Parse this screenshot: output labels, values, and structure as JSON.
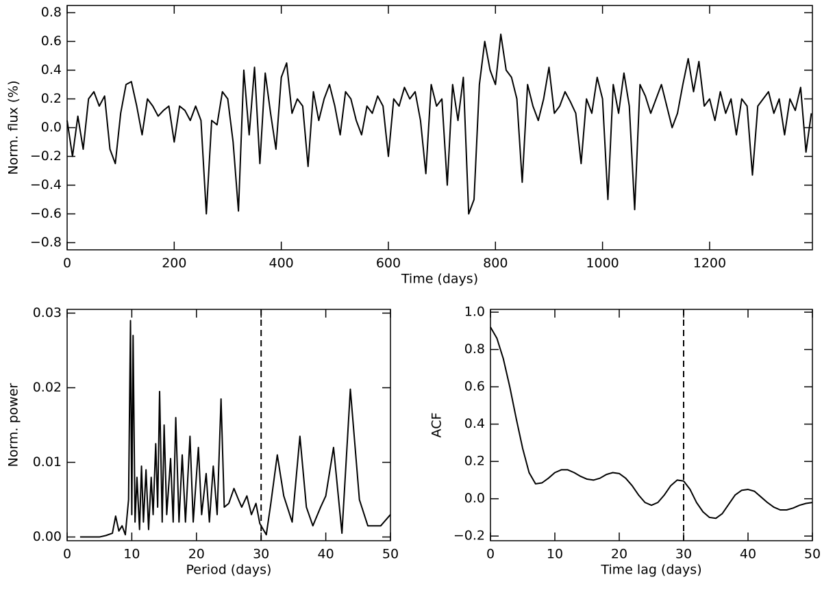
{
  "chart_data": [
    {
      "type": "line",
      "xlabel": "Time (days)",
      "ylabel": "Norm. flux (%)",
      "xlim": [
        0,
        1392
      ],
      "ylim": [
        -0.85,
        0.85
      ],
      "xticks": [
        0,
        200,
        400,
        600,
        800,
        1000,
        1200
      ],
      "yticks": [
        {
          "value": -0.8,
          "label": "−0.8"
        },
        {
          "value": -0.6,
          "label": "−0.6"
        },
        {
          "value": -0.4,
          "label": "−0.4"
        },
        {
          "value": -0.2,
          "label": "−0.2"
        },
        {
          "value": 0,
          "label": "0.0"
        },
        {
          "value": 0.2,
          "label": "0.2"
        },
        {
          "value": 0.4,
          "label": "0.4"
        },
        {
          "value": 0.6,
          "label": "0.6"
        },
        {
          "value": 0.8,
          "label": "0.8"
        }
      ],
      "color": "#000000",
      "x": [
        0,
        10,
        20,
        30,
        40,
        50,
        60,
        70,
        80,
        90,
        100,
        110,
        120,
        130,
        140,
        150,
        160,
        170,
        180,
        190,
        200,
        210,
        220,
        230,
        240,
        250,
        260,
        270,
        280,
        290,
        300,
        310,
        320,
        330,
        340,
        350,
        360,
        370,
        380,
        390,
        400,
        410,
        420,
        430,
        440,
        450,
        460,
        470,
        480,
        490,
        500,
        510,
        520,
        530,
        540,
        550,
        560,
        570,
        580,
        590,
        600,
        610,
        620,
        630,
        640,
        650,
        660,
        670,
        680,
        690,
        700,
        710,
        720,
        730,
        740,
        750,
        760,
        770,
        780,
        790,
        800,
        810,
        820,
        830,
        840,
        850,
        860,
        870,
        880,
        890,
        900,
        910,
        920,
        930,
        940,
        950,
        960,
        970,
        980,
        990,
        1000,
        1010,
        1020,
        1030,
        1040,
        1050,
        1060,
        1070,
        1080,
        1090,
        1100,
        1110,
        1120,
        1130,
        1140,
        1150,
        1160,
        1170,
        1180,
        1190,
        1200,
        1210,
        1220,
        1230,
        1240,
        1250,
        1260,
        1270,
        1280,
        1290,
        1300,
        1310,
        1320,
        1330,
        1340,
        1350,
        1360,
        1370,
        1380,
        1390
      ],
      "values": [
        0.05,
        -0.2,
        0.08,
        -0.15,
        0.2,
        0.25,
        0.15,
        0.22,
        -0.15,
        -0.25,
        0.1,
        0.3,
        0.32,
        0.15,
        -0.05,
        0.2,
        0.15,
        0.08,
        0.12,
        0.15,
        -0.1,
        0.15,
        0.12,
        0.05,
        0.15,
        0.05,
        -0.6,
        0.05,
        0.02,
        0.25,
        0.2,
        -0.1,
        -0.58,
        0.4,
        -0.05,
        0.42,
        -0.25,
        0.38,
        0.1,
        -0.15,
        0.35,
        0.45,
        0.1,
        0.2,
        0.15,
        -0.27,
        0.25,
        0.05,
        0.2,
        0.3,
        0.15,
        -0.05,
        0.25,
        0.2,
        0.05,
        -0.05,
        0.15,
        0.1,
        0.22,
        0.15,
        -0.2,
        0.2,
        0.15,
        0.28,
        0.2,
        0.25,
        0.05,
        -0.32,
        0.3,
        0.15,
        0.2,
        -0.4,
        0.3,
        0.05,
        0.35,
        -0.6,
        -0.5,
        0.3,
        0.6,
        0.4,
        0.3,
        0.65,
        0.4,
        0.35,
        0.2,
        -0.38,
        0.3,
        0.15,
        0.05,
        0.2,
        0.42,
        0.1,
        0.15,
        0.25,
        0.18,
        0.1,
        -0.25,
        0.2,
        0.1,
        0.35,
        0.2,
        -0.5,
        0.3,
        0.1,
        0.38,
        0.15,
        -0.57,
        0.3,
        0.22,
        0.1,
        0.2,
        0.3,
        0.15,
        0.0,
        0.1,
        0.3,
        0.48,
        0.25,
        0.46,
        0.15,
        0.2,
        0.05,
        0.25,
        0.1,
        0.2,
        -0.05,
        0.2,
        0.15,
        -0.33,
        0.15,
        0.2,
        0.25,
        0.1,
        0.2,
        -0.05,
        0.2,
        0.12,
        0.28,
        -0.17,
        0.1
      ]
    },
    {
      "type": "line",
      "xlabel": "Period (days)",
      "ylabel": "Norm. power",
      "xlim": [
        0,
        50
      ],
      "ylim": [
        -0.0005,
        0.0305
      ],
      "xticks": [
        0,
        10,
        20,
        30,
        40,
        50
      ],
      "yticks": [
        {
          "value": 0,
          "label": "0.00"
        },
        {
          "value": 0.01,
          "label": "0.01"
        },
        {
          "value": 0.02,
          "label": "0.02"
        },
        {
          "value": 0.03,
          "label": "0.03"
        }
      ],
      "color": "#000000",
      "reference_x": 30,
      "x": [
        2,
        5,
        6,
        7,
        7.5,
        8,
        8.5,
        9,
        9.5,
        9.8,
        10,
        10.2,
        10.5,
        10.8,
        11.2,
        11.5,
        11.8,
        12.2,
        12.6,
        13,
        13.3,
        13.7,
        14,
        14.3,
        14.7,
        15,
        15.4,
        16,
        16.4,
        16.8,
        17.3,
        17.8,
        18.3,
        19,
        19.5,
        20.3,
        20.8,
        21.5,
        22,
        22.6,
        23.2,
        23.8,
        24.3,
        25,
        25.8,
        26.5,
        27,
        27.8,
        28.5,
        29.2,
        29.8,
        30.8,
        31.5,
        32.5,
        33.5,
        34.8,
        36,
        37,
        38,
        39.2,
        40,
        41.2,
        42.5,
        43.8,
        45.2,
        46.5,
        48.5,
        50
      ],
      "values": [
        0,
        0,
        0.0002,
        0.0005,
        0.0028,
        0.0008,
        0.0015,
        0.0003,
        0.005,
        0.029,
        0.003,
        0.027,
        0.002,
        0.008,
        0.001,
        0.0095,
        0.002,
        0.009,
        0.001,
        0.008,
        0.003,
        0.0125,
        0.004,
        0.0195,
        0.002,
        0.015,
        0.003,
        0.0105,
        0.002,
        0.016,
        0.002,
        0.011,
        0.002,
        0.0135,
        0.002,
        0.012,
        0.003,
        0.0085,
        0.002,
        0.0095,
        0.003,
        0.0185,
        0.004,
        0.0045,
        0.0065,
        0.005,
        0.004,
        0.0055,
        0.003,
        0.0045,
        0.0018,
        0.0003,
        0.0045,
        0.011,
        0.0055,
        0.002,
        0.0135,
        0.004,
        0.0015,
        0.004,
        0.0055,
        0.012,
        0.0005,
        0.0198,
        0.005,
        0.0015,
        0.0015,
        0.003
      ]
    },
    {
      "type": "line",
      "xlabel": "Time lag (days)",
      "ylabel": "ACF",
      "xlim": [
        0,
        50
      ],
      "ylim": [
        -0.225,
        1.015
      ],
      "xticks": [
        0,
        10,
        20,
        30,
        40,
        50
      ],
      "yticks": [
        {
          "value": -0.2,
          "label": "−0.2"
        },
        {
          "value": 0,
          "label": "0.0"
        },
        {
          "value": 0.2,
          "label": "0.2"
        },
        {
          "value": 0.4,
          "label": "0.4"
        },
        {
          "value": 0.6,
          "label": "0.6"
        },
        {
          "value": 0.8,
          "label": "0.8"
        },
        {
          "value": 1,
          "label": "1.0"
        }
      ],
      "color": "#000000",
      "reference_x": 30,
      "x": [
        0,
        1,
        2,
        3,
        4,
        5,
        6,
        7,
        8,
        9,
        10,
        11,
        12,
        13,
        14,
        15,
        16,
        17,
        18,
        19,
        20,
        21,
        22,
        23,
        24,
        25,
        26,
        27,
        28,
        29,
        30,
        31,
        32,
        33,
        34,
        35,
        36,
        37,
        38,
        39,
        40,
        41,
        42,
        43,
        44,
        45,
        46,
        47,
        48,
        49,
        50
      ],
      "values": [
        0.92,
        0.86,
        0.75,
        0.6,
        0.43,
        0.27,
        0.14,
        0.08,
        0.085,
        0.11,
        0.14,
        0.155,
        0.155,
        0.14,
        0.12,
        0.105,
        0.1,
        0.11,
        0.13,
        0.14,
        0.135,
        0.11,
        0.07,
        0.02,
        -0.02,
        -0.035,
        -0.02,
        0.02,
        0.07,
        0.1,
        0.095,
        0.05,
        -0.02,
        -0.07,
        -0.1,
        -0.105,
        -0.08,
        -0.03,
        0.02,
        0.045,
        0.05,
        0.04,
        0.01,
        -0.02,
        -0.045,
        -0.06,
        -0.06,
        -0.05,
        -0.035,
        -0.025,
        -0.02
      ]
    }
  ]
}
